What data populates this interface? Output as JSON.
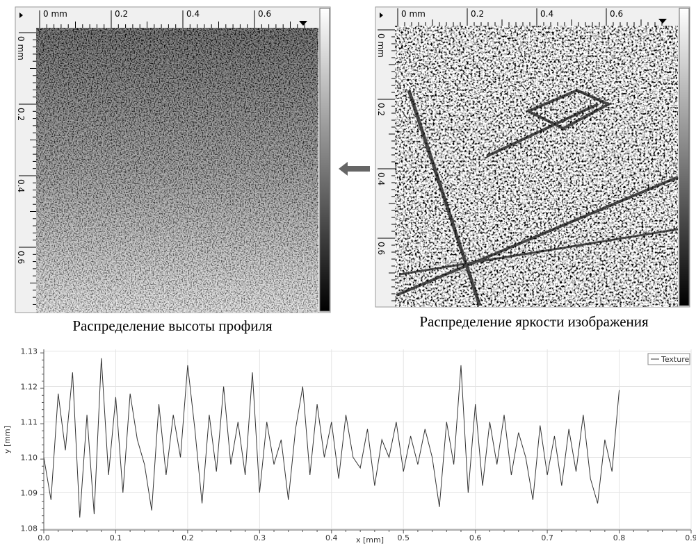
{
  "panels": [
    {
      "top_ruler": [
        "0 mm",
        "0.2",
        "0.4",
        "0.6"
      ],
      "side_ruler": [
        "0 mm",
        "0.2",
        "0.4",
        "0.6"
      ],
      "caption": "Распределение высоты профиля"
    },
    {
      "top_ruler": [
        "0 mm",
        "0.2",
        "0.4",
        "0.6"
      ],
      "side_ruler": [
        "0 mm",
        "0.2",
        "0.4",
        "0.6"
      ],
      "caption": "Распределение яркости изображения"
    }
  ],
  "chart_data": {
    "type": "line",
    "x": [
      0.0,
      0.01,
      0.02,
      0.03,
      0.04,
      0.05,
      0.06,
      0.07,
      0.08,
      0.09,
      0.1,
      0.11,
      0.12,
      0.13,
      0.14,
      0.15,
      0.16,
      0.17,
      0.18,
      0.19,
      0.2,
      0.21,
      0.22,
      0.23,
      0.24,
      0.25,
      0.26,
      0.27,
      0.28,
      0.29,
      0.3,
      0.31,
      0.32,
      0.33,
      0.34,
      0.35,
      0.36,
      0.37,
      0.38,
      0.39,
      0.4,
      0.41,
      0.42,
      0.43,
      0.44,
      0.45,
      0.46,
      0.47,
      0.48,
      0.49,
      0.5,
      0.51,
      0.52,
      0.53,
      0.54,
      0.55,
      0.56,
      0.57,
      0.58,
      0.59,
      0.6,
      0.61,
      0.62,
      0.63,
      0.64,
      0.65,
      0.66,
      0.67,
      0.68,
      0.69,
      0.7,
      0.71,
      0.72,
      0.73,
      0.74,
      0.75,
      0.76,
      0.77,
      0.78,
      0.79,
      0.8
    ],
    "series": [
      {
        "name": "Texture",
        "color": "#333333",
        "values": [
          1.1,
          1.088,
          1.118,
          1.102,
          1.124,
          1.083,
          1.112,
          1.084,
          1.128,
          1.095,
          1.117,
          1.09,
          1.118,
          1.105,
          1.098,
          1.085,
          1.115,
          1.095,
          1.112,
          1.1,
          1.126,
          1.108,
          1.087,
          1.112,
          1.096,
          1.12,
          1.098,
          1.11,
          1.095,
          1.124,
          1.09,
          1.11,
          1.098,
          1.105,
          1.088,
          1.108,
          1.12,
          1.095,
          1.115,
          1.1,
          1.11,
          1.094,
          1.112,
          1.1,
          1.097,
          1.108,
          1.092,
          1.105,
          1.1,
          1.11,
          1.096,
          1.106,
          1.098,
          1.108,
          1.1,
          1.086,
          1.11,
          1.098,
          1.126,
          1.09,
          1.115,
          1.092,
          1.11,
          1.098,
          1.112,
          1.095,
          1.107,
          1.1,
          1.088,
          1.109,
          1.095,
          1.106,
          1.092,
          1.108,
          1.096,
          1.112,
          1.094,
          1.087,
          1.105,
          1.096,
          1.119
        ]
      }
    ],
    "xlabel": "x [mm]",
    "ylabel": "y [mm]",
    "xlim": [
      0,
      0.9
    ],
    "ylim": [
      1.0795,
      1.1305
    ],
    "xticks": [
      {
        "value": 0,
        "label": "0.0"
      },
      0.1,
      0.2,
      0.3,
      0.4,
      0.5,
      0.6,
      0.7,
      0.8,
      0.9
    ],
    "yticks": [
      1.08,
      1.09,
      {
        "value": 1.1,
        "label": "1.10"
      },
      1.11,
      1.12,
      1.13
    ],
    "grid": true,
    "legend": "top-right"
  }
}
